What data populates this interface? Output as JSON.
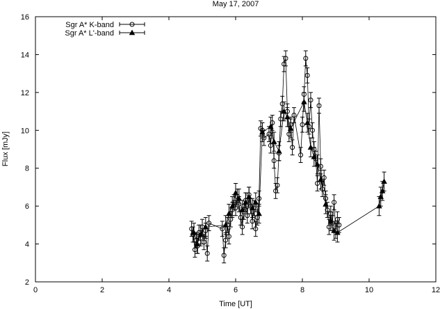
{
  "chart_data": {
    "type": "scatter",
    "title": "May 17, 2007",
    "xlabel": "Time [UT]",
    "ylabel": "Flux [mJy]",
    "xlim": [
      0,
      12
    ],
    "ylim": [
      2,
      16
    ],
    "xticks": [
      "0",
      "2",
      "4",
      "6",
      "8",
      "10",
      "12"
    ],
    "yticks": [
      "2",
      "4",
      "6",
      "8",
      "10",
      "12",
      "14",
      "16"
    ],
    "grid": false,
    "legend_position": "top-left",
    "series": [
      {
        "name": "Sgr A* K-band",
        "marker": "circle",
        "connected": true,
        "x": [
          4.68,
          4.72,
          4.78,
          4.82,
          4.86,
          4.9,
          4.95,
          5.0,
          5.05,
          5.1,
          5.15,
          5.2,
          5.6,
          5.65,
          5.7,
          5.75,
          5.8,
          5.85,
          5.9,
          5.95,
          6.0,
          6.05,
          6.1,
          6.15,
          6.2,
          6.25,
          6.3,
          6.35,
          6.4,
          6.45,
          6.5,
          6.55,
          6.6,
          6.65,
          6.7,
          6.75,
          6.8,
          6.85,
          7.0,
          7.05,
          7.1,
          7.15,
          7.2,
          7.25,
          7.3,
          7.35,
          7.4,
          7.45,
          7.5,
          7.55,
          7.6,
          7.65,
          7.7,
          7.75,
          7.95,
          8.0,
          8.05,
          8.1,
          8.15,
          8.2,
          8.25,
          8.3,
          8.35,
          8.4,
          8.45,
          8.5,
          8.55,
          8.6,
          8.65,
          8.7,
          8.75,
          8.8,
          8.85,
          8.9,
          8.95,
          9.0,
          9.05,
          9.1
        ],
        "y": [
          4.8,
          4.5,
          3.7,
          4.2,
          3.9,
          4.6,
          4.3,
          4.9,
          4.1,
          4.7,
          3.5,
          5.1,
          4.8,
          3.4,
          4.2,
          5.0,
          4.4,
          5.3,
          5.8,
          6.2,
          5.9,
          6.5,
          6.1,
          5.4,
          4.9,
          5.7,
          6.3,
          5.5,
          6.6,
          6.0,
          5.2,
          5.9,
          4.8,
          5.4,
          6.4,
          10.1,
          10.0,
          9.6,
          9.8,
          9.2,
          10.4,
          8.4,
          6.8,
          7.1,
          8.8,
          10.6,
          11.4,
          13.5,
          13.8,
          11.0,
          9.8,
          10.3,
          9.1,
          10.8,
          8.7,
          10.3,
          11.9,
          13.8,
          12.9,
          10.2,
          11.6,
          10.0,
          9.0,
          8.5,
          7.2,
          11.3,
          8.1,
          6.9,
          7.5,
          6.4,
          5.8,
          4.9,
          5.6,
          5.1,
          6.2,
          4.7,
          5.3,
          5.0
        ],
        "y_err": 0.4
      },
      {
        "name": "Sgr A* L'-band",
        "marker": "triangle",
        "connected": true,
        "x": [
          4.75,
          4.85,
          4.95,
          5.1,
          5.7,
          5.8,
          5.9,
          6.0,
          6.1,
          6.2,
          6.3,
          6.4,
          6.5,
          6.6,
          6.7,
          6.8,
          7.05,
          7.15,
          7.3,
          7.45,
          7.55,
          7.65,
          8.05,
          8.15,
          8.25,
          8.35,
          8.45,
          8.55,
          8.7,
          8.85,
          8.95,
          9.05,
          10.3,
          10.35,
          10.4,
          10.45
        ],
        "y": [
          4.6,
          4.0,
          4.5,
          4.9,
          5.0,
          5.6,
          6.0,
          6.7,
          6.4,
          5.8,
          6.2,
          6.5,
          5.9,
          6.2,
          5.6,
          9.9,
          10.2,
          9.4,
          8.9,
          11.0,
          10.7,
          10.1,
          11.5,
          10.4,
          9.1,
          8.6,
          8.2,
          7.4,
          6.1,
          5.2,
          4.7,
          4.6,
          6.0,
          6.5,
          6.8,
          7.3
        ],
        "y_err": 0.5
      }
    ]
  }
}
